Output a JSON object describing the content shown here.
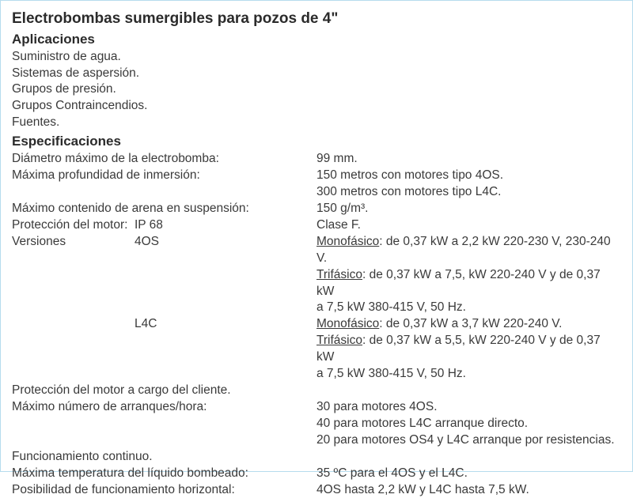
{
  "title": "Electrobombas sumergibles para pozos de 4\"",
  "sections": {
    "applications": {
      "heading": "Aplicaciones",
      "items": [
        "Suministro de agua.",
        "Sistemas de aspersión.",
        "Grupos de presión.",
        "Grupos Contraincendios.",
        "Fuentes."
      ]
    },
    "specs": {
      "heading": "Especificaciones",
      "diameter": {
        "label": "Diámetro máximo de la electrobomba:",
        "value": "99 mm."
      },
      "depth": {
        "label": "Máxima profundidad de inmersión:",
        "v1": "150 metros con motores tipo 4OS.",
        "v2": "300 metros con motores tipo L4C."
      },
      "sand": {
        "label": "Máximo contenido de arena en suspensión:",
        "value": "150 g/m³."
      },
      "protection": {
        "label1": "Protección del motor:",
        "label2": "IP 68",
        "value": "Clase F."
      },
      "versions": {
        "label": "Versiones",
        "v4os": {
          "name": "4OS",
          "mono_label": "Monofásico",
          "mono": ": de 0,37 kW a 2,2 kW 220-230 V, 230-240 V.",
          "tri_label": "Trifásico",
          "tri1": ": de 0,37 kW a 7,5, kW 220-240 V  y de 0,37 kW",
          "tri2": "a 7,5  kW 380-415 V, 50 Hz."
        },
        "l4c": {
          "name": "L4C",
          "mono_label": "Monofásico",
          "mono": ": de 0,37 kW a 3,7 kW 220-240 V.",
          "tri_label": "Trifásico",
          "tri1": ": de 0,37 kW a 5,5, kW 220-240 V  y de 0,37 kW",
          "tri2": "a 7,5 kW  380-415 V, 50 Hz."
        }
      },
      "client_protection": "Protección del motor a cargo del cliente.",
      "starts": {
        "label": "Máximo número de arranques/hora:",
        "v1": "30 para motores 4OS.",
        "v2": "40 para motores L4C arranque directo.",
        "v3": "20 para motores OS4 y L4C arranque por resistencias."
      },
      "continuous": "Funcionamiento continuo.",
      "temp": {
        "label": "Máxima temperatura del líquido bombeado:",
        "value": "35 ºC para el 4OS y el L4C."
      },
      "horizontal": {
        "label": "Posibilidad de funcionamiento horizontal:",
        "value": "4OS hasta 2,2 kW y L4C hasta 7,5 kW."
      }
    }
  }
}
